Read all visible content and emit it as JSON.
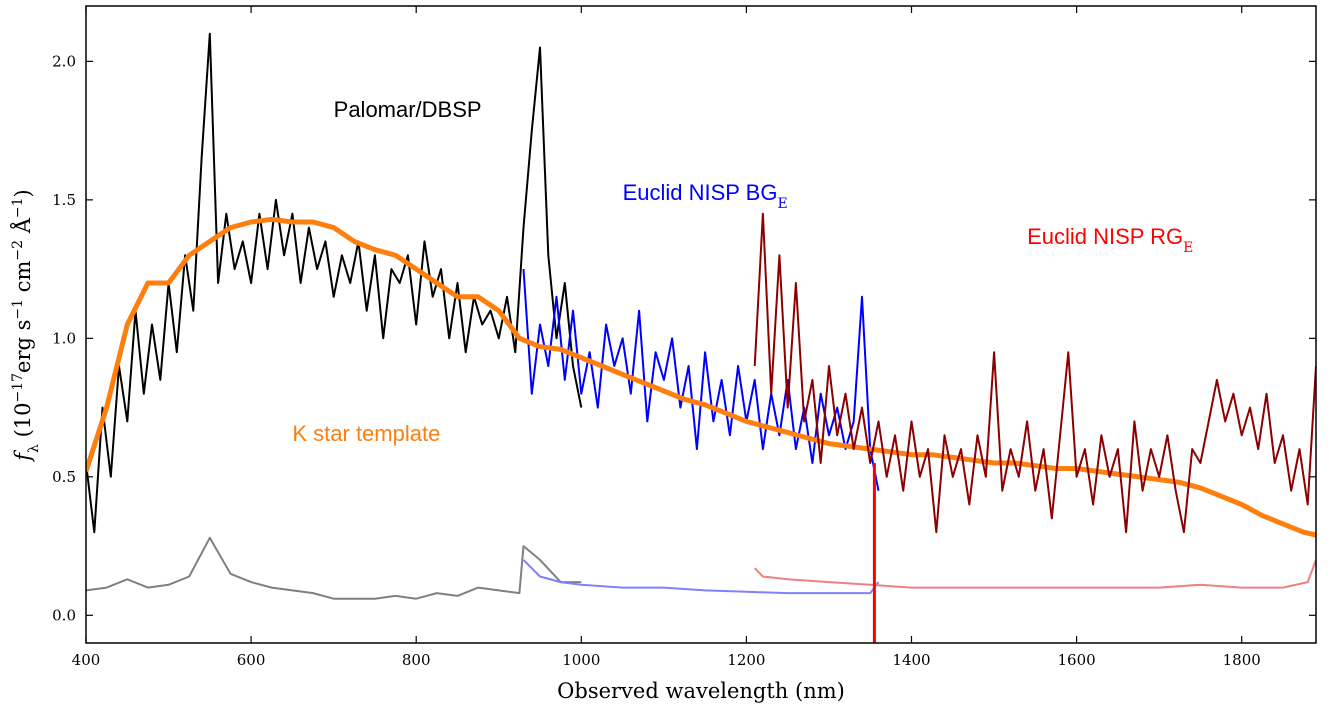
{
  "chart_data": {
    "type": "line",
    "xlabel": "Observed wavelength (nm)",
    "ylabel": [
      "f",
      "λ",
      " (10",
      "−17",
      "erg s",
      "−1",
      " cm",
      "−2",
      " Å",
      "−1",
      ")"
    ],
    "annotations": [
      {
        "text": "Palomar/DBSP",
        "color": "#000000",
        "at": [
          700,
          1.8
        ]
      },
      {
        "text": "Euclid NISP BG",
        "sub": "E",
        "color": "#0000ff",
        "at": [
          1050,
          1.5
        ]
      },
      {
        "text": "Euclid NISP RG",
        "sub": "E",
        "color": "#ff0000",
        "at": [
          1540,
          1.34
        ]
      },
      {
        "text": "K star template",
        "color": "#ff7f0e",
        "at": [
          650,
          0.63
        ]
      }
    ],
    "xlim": [
      400,
      1890
    ],
    "ylim": [
      -0.1,
      2.2
    ],
    "xticks": [
      400,
      600,
      800,
      1000,
      1200,
      1400,
      1600,
      1800
    ],
    "yticks": [
      {
        "value": 0,
        "label": "0.0"
      },
      {
        "value": 0.5,
        "label": "0.5"
      },
      {
        "value": 1,
        "label": "1.0"
      },
      {
        "value": 1.5,
        "label": "1.5"
      },
      {
        "value": 2,
        "label": "2.0"
      }
    ],
    "series": [
      {
        "color": "#808080",
        "width": 2,
        "x": [
          400,
          425,
          450,
          475,
          500,
          525,
          550,
          575,
          600,
          625,
          650,
          675,
          700,
          725,
          750,
          775,
          800,
          825,
          850,
          875,
          900,
          925,
          930,
          950,
          975,
          1000
        ],
        "values": [
          0.09,
          0.1,
          0.13,
          0.1,
          0.11,
          0.14,
          0.28,
          0.15,
          0.12,
          0.1,
          0.09,
          0.08,
          0.06,
          0.06,
          0.06,
          0.07,
          0.06,
          0.08,
          0.07,
          0.1,
          0.09,
          0.08,
          0.25,
          0.2,
          0.12,
          0.12
        ]
      },
      {
        "color": "#8080ff",
        "width": 2,
        "x": [
          930,
          950,
          975,
          1000,
          1050,
          1100,
          1150,
          1200,
          1250,
          1300,
          1350,
          1360
        ],
        "values": [
          0.2,
          0.14,
          0.12,
          0.11,
          0.1,
          0.1,
          0.09,
          0.085,
          0.08,
          0.08,
          0.08,
          0.12
        ]
      },
      {
        "color": "#f08080",
        "width": 2,
        "x": [
          1210,
          1220,
          1250,
          1300,
          1350,
          1400,
          1500,
          1600,
          1700,
          1750,
          1800,
          1850,
          1880,
          1890
        ],
        "values": [
          0.17,
          0.14,
          0.13,
          0.12,
          0.11,
          0.1,
          0.1,
          0.1,
          0.1,
          0.11,
          0.1,
          0.1,
          0.12,
          0.2
        ]
      },
      {
        "color": "#000000",
        "width": 2,
        "x": [
          400,
          410,
          420,
          430,
          440,
          450,
          460,
          470,
          480,
          490,
          500,
          510,
          520,
          530,
          540,
          550,
          560,
          570,
          580,
          590,
          600,
          610,
          620,
          630,
          640,
          650,
          660,
          670,
          680,
          690,
          700,
          710,
          720,
          730,
          740,
          750,
          760,
          770,
          780,
          790,
          800,
          810,
          820,
          830,
          840,
          850,
          860,
          870,
          880,
          890,
          900,
          910,
          920,
          930,
          940,
          950,
          960,
          970,
          980,
          990,
          1000
        ],
        "values": [
          0.55,
          0.3,
          0.75,
          0.5,
          0.9,
          0.7,
          1.1,
          0.8,
          1.05,
          0.85,
          1.2,
          0.95,
          1.3,
          1.1,
          1.65,
          2.1,
          1.2,
          1.45,
          1.25,
          1.35,
          1.2,
          1.45,
          1.25,
          1.5,
          1.3,
          1.45,
          1.2,
          1.4,
          1.25,
          1.35,
          1.15,
          1.3,
          1.2,
          1.35,
          1.1,
          1.3,
          1.0,
          1.25,
          1.2,
          1.3,
          1.05,
          1.35,
          1.15,
          1.25,
          1.0,
          1.2,
          0.95,
          1.15,
          1.05,
          1.1,
          1.0,
          1.15,
          0.95,
          1.4,
          1.75,
          2.05,
          1.3,
          1.0,
          1.2,
          0.9,
          0.75
        ]
      },
      {
        "color": "#0000ff",
        "width": 2,
        "x": [
          930,
          940,
          950,
          960,
          970,
          980,
          990,
          1000,
          1010,
          1020,
          1030,
          1040,
          1050,
          1060,
          1070,
          1080,
          1090,
          1100,
          1110,
          1120,
          1130,
          1140,
          1150,
          1160,
          1170,
          1180,
          1190,
          1200,
          1210,
          1220,
          1230,
          1240,
          1250,
          1260,
          1270,
          1280,
          1290,
          1300,
          1310,
          1320,
          1330,
          1340,
          1350,
          1360
        ],
        "values": [
          1.25,
          0.8,
          1.05,
          0.9,
          1.15,
          0.85,
          1.1,
          0.8,
          0.95,
          0.75,
          1.05,
          0.9,
          1.0,
          0.8,
          1.1,
          0.7,
          0.95,
          0.85,
          1.0,
          0.75,
          0.9,
          0.6,
          0.95,
          0.7,
          0.85,
          0.65,
          0.9,
          0.7,
          0.85,
          0.6,
          0.8,
          0.65,
          0.85,
          0.6,
          0.75,
          0.55,
          0.8,
          0.65,
          0.75,
          0.6,
          0.7,
          1.15,
          0.6,
          0.45
        ]
      },
      {
        "color": "#ff7f0e",
        "width": 5,
        "x": [
          400,
          425,
          450,
          475,
          500,
          525,
          550,
          575,
          600,
          625,
          650,
          675,
          700,
          725,
          750,
          775,
          800,
          825,
          850,
          875,
          900,
          925,
          950,
          975,
          1000,
          1025,
          1050,
          1075,
          1100,
          1125,
          1150,
          1175,
          1200,
          1225,
          1250,
          1275,
          1300,
          1325,
          1350,
          1375,
          1400,
          1425,
          1450,
          1475,
          1500,
          1525,
          1550,
          1575,
          1600,
          1625,
          1650,
          1675,
          1700,
          1725,
          1750,
          1775,
          1800,
          1825,
          1850,
          1875,
          1890
        ],
        "values": [
          0.52,
          0.75,
          1.05,
          1.2,
          1.2,
          1.3,
          1.35,
          1.4,
          1.42,
          1.43,
          1.42,
          1.42,
          1.4,
          1.35,
          1.32,
          1.3,
          1.25,
          1.2,
          1.15,
          1.15,
          1.1,
          1.0,
          0.97,
          0.96,
          0.93,
          0.9,
          0.87,
          0.84,
          0.81,
          0.78,
          0.76,
          0.73,
          0.7,
          0.68,
          0.66,
          0.64,
          0.62,
          0.61,
          0.6,
          0.59,
          0.58,
          0.58,
          0.57,
          0.56,
          0.55,
          0.55,
          0.54,
          0.53,
          0.53,
          0.52,
          0.51,
          0.5,
          0.49,
          0.48,
          0.46,
          0.43,
          0.4,
          0.36,
          0.33,
          0.3,
          0.29
        ]
      },
      {
        "color": "#ff0000",
        "width": 3,
        "x": [
          1355,
          1355
        ],
        "values": [
          0.55,
          -0.1
        ]
      },
      {
        "color": "#8b0000",
        "width": 2,
        "x": [
          1210,
          1220,
          1230,
          1240,
          1250,
          1260,
          1270,
          1280,
          1290,
          1300,
          1310,
          1320,
          1330,
          1340,
          1350,
          1360,
          1370,
          1380,
          1390,
          1400,
          1410,
          1420,
          1430,
          1440,
          1450,
          1460,
          1470,
          1480,
          1490,
          1500,
          1510,
          1520,
          1530,
          1540,
          1550,
          1560,
          1570,
          1580,
          1590,
          1600,
          1610,
          1620,
          1630,
          1640,
          1650,
          1660,
          1670,
          1680,
          1690,
          1700,
          1710,
          1720,
          1730,
          1740,
          1750,
          1760,
          1770,
          1780,
          1790,
          1800,
          1810,
          1820,
          1830,
          1840,
          1850,
          1860,
          1870,
          1880,
          1890
        ],
        "values": [
          0.9,
          1.45,
          0.8,
          1.3,
          0.75,
          1.2,
          0.7,
          0.85,
          0.55,
          0.9,
          0.65,
          0.8,
          0.6,
          0.75,
          0.55,
          0.7,
          0.5,
          0.65,
          0.45,
          0.7,
          0.5,
          0.6,
          0.3,
          0.65,
          0.5,
          0.6,
          0.4,
          0.65,
          0.5,
          0.95,
          0.45,
          0.6,
          0.5,
          0.7,
          0.45,
          0.6,
          0.35,
          0.65,
          0.95,
          0.5,
          0.6,
          0.4,
          0.65,
          0.5,
          0.6,
          0.3,
          0.7,
          0.45,
          0.6,
          0.5,
          0.65,
          0.45,
          0.3,
          0.6,
          0.55,
          0.7,
          0.85,
          0.7,
          0.8,
          0.65,
          0.75,
          0.6,
          0.8,
          0.55,
          0.65,
          0.45,
          0.6,
          0.4,
          0.9
        ]
      }
    ]
  }
}
